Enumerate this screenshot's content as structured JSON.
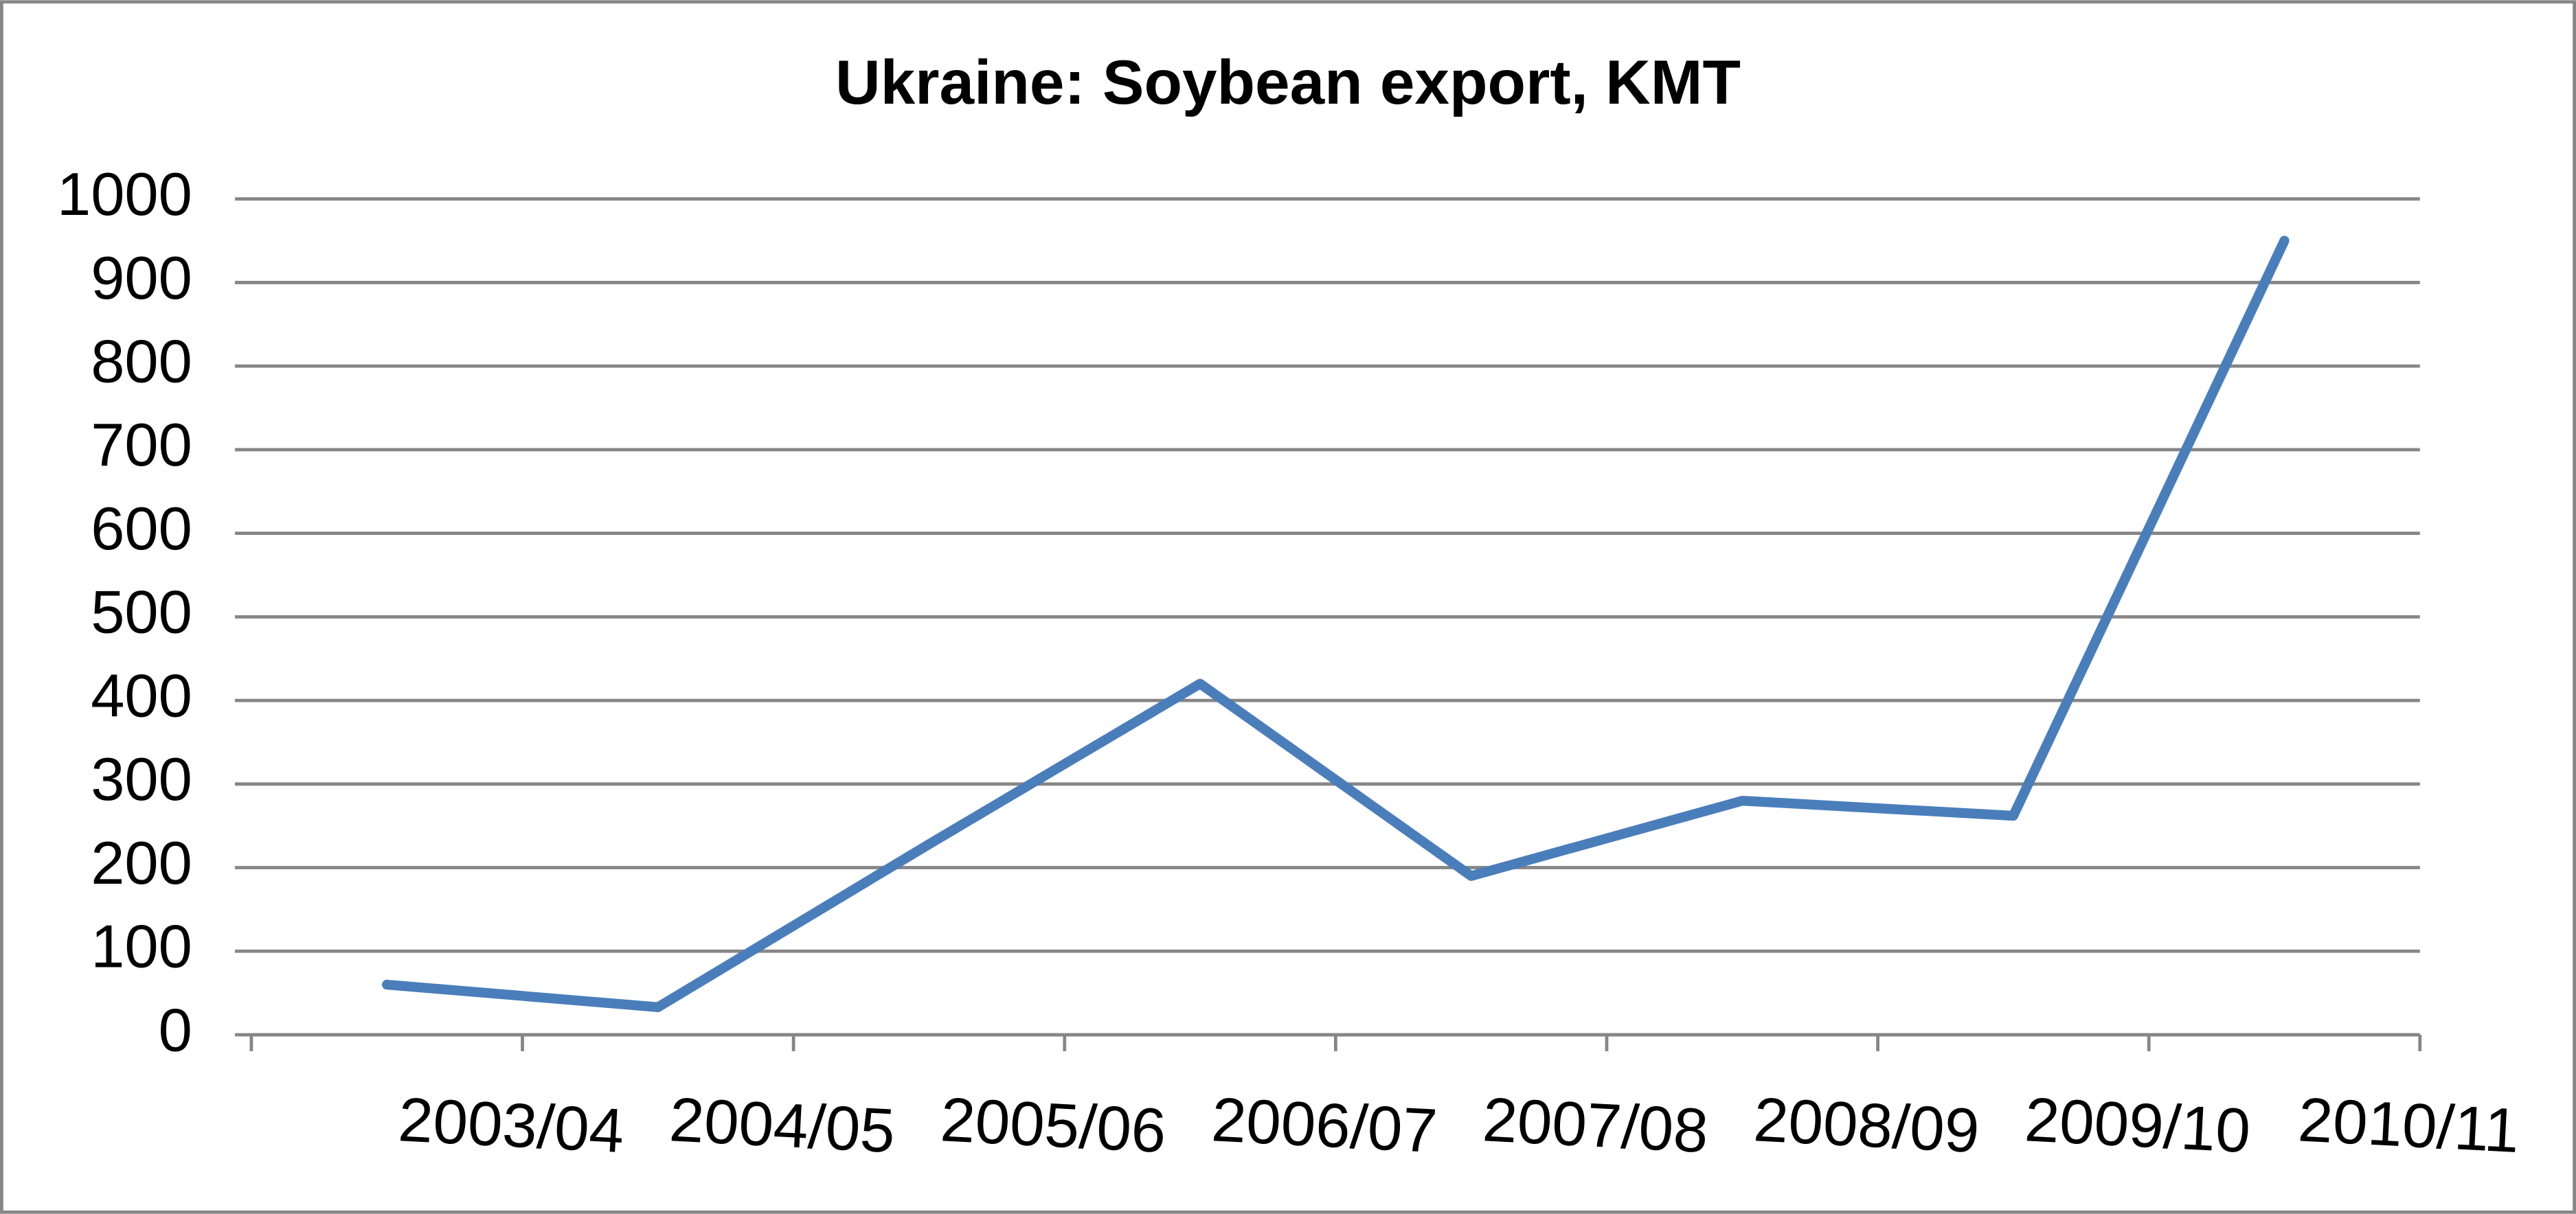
{
  "chart_data": {
    "type": "line",
    "title": "Ukraine: Soybean export, KMT",
    "categories": [
      "2003/04",
      "2004/05",
      "2005/06",
      "2006/07",
      "2007/08",
      "2008/09",
      "2009/10",
      "2010/11"
    ],
    "series": [
      {
        "name": "Soybean export",
        "color": "#4a7ebb",
        "values": [
          60,
          33,
          228,
          420,
          190,
          280,
          262,
          950
        ]
      }
    ],
    "ylim": [
      0,
      1000
    ],
    "yticks": [
      0,
      100,
      200,
      300,
      400,
      500,
      600,
      700,
      800,
      900,
      1000
    ],
    "grid": true
  }
}
